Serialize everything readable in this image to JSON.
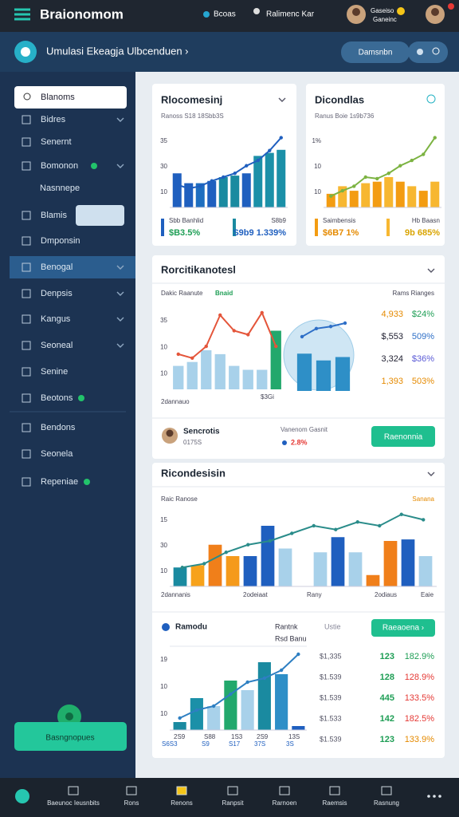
{
  "topbar": {
    "logo": "Braionomom",
    "link": "Bcoas",
    "user": "Ralimenc Kar",
    "profile_line1": "Gaseiso",
    "profile_line2": "Ganeinc"
  },
  "subbar": {
    "title": "Umulasi Ekeagja Ulbcenduen ›",
    "button": "Damsnbn"
  },
  "sidebar": {
    "search": "Blanoms",
    "items": [
      "Bidres",
      "Senernt",
      "Bomonon",
      "Nasnnepe",
      "Blamis",
      "Dmponsin",
      "Benogal",
      "Denpsis",
      "Kangus",
      "Seoneal",
      "Senine",
      "Beotons",
      "Bendons",
      "Seonela",
      "Repeniae"
    ],
    "button": "Basngnopues"
  },
  "card1": {
    "title": "Rlocomesinj",
    "subtitle": "Ranoss S18 18Sbb3S",
    "chart": {
      "ytick_labels": [
        "35",
        "30",
        "10"
      ],
      "ylim": [
        0,
        100
      ],
      "values": [
        45,
        32,
        32,
        35,
        40,
        42,
        45,
        68,
        72,
        76
      ],
      "bar_colors": [
        "#1f5fbf",
        "#1f5fbf",
        "#1e6ec0",
        "#1f5fbf",
        "#1a8aa0",
        "#1a8aa0",
        "#1f5fbf",
        "#1b90a8",
        "#1b90a8",
        "#1b90a8"
      ],
      "line": [
        30,
        25,
        28,
        35,
        40,
        45,
        55,
        62,
        75,
        92
      ],
      "line_color": "#1f5fbf"
    },
    "footer_a_label": "Sbb Banhlid",
    "footer_a_value": "$B3.5%",
    "footer_b_label": "S8b9",
    "footer_b_value": "S9b9 1.339%"
  },
  "card2": {
    "title": "Dicondlas",
    "subtitle": "Ranus Boie 1s9b736",
    "chart": {
      "ytick_labels": [
        "1%",
        "10",
        "10"
      ],
      "ylim": [
        0,
        100
      ],
      "values": [
        18,
        28,
        22,
        32,
        34,
        40,
        34,
        28,
        22,
        34
      ],
      "bar_colors": [
        "#f39c12",
        "#f7b731"
      ],
      "line": [
        15,
        22,
        28,
        40,
        38,
        45,
        55,
        62,
        70,
        92
      ],
      "line_color": "#7cb342"
    },
    "footer_a_label": "Saimbensis",
    "footer_a_value": "$6B7 1%",
    "footer_b_label": "Hb Baasn",
    "footer_b_value": "9b 685%"
  },
  "card3": {
    "title": "Rorcitikanotesl",
    "label_left": "Dakic Raanute",
    "label_badge": "Bnaid",
    "label_right": "Rams Rianges",
    "chart": {
      "ytick_labels": [
        "35",
        "10",
        "10"
      ],
      "ylim": [
        0,
        100
      ],
      "values": [
        30,
        35,
        50,
        45,
        30,
        25,
        25,
        75
      ],
      "bar_colors": [
        "#a8d1ea",
        "#a8d1ea",
        "#a8d1ea",
        "#a8d1ea",
        "#a8d1ea",
        "#a8d1ea",
        "#a8d1ea",
        "#22a86c"
      ],
      "line": [
        45,
        40,
        55,
        95,
        75,
        70,
        98,
        55
      ],
      "line_color": "#e4553a"
    },
    "inset": {
      "ylim": [
        0,
        100
      ],
      "values": [
        55,
        45,
        50
      ],
      "bar_colors": [
        "#2e8fc7"
      ],
      "line": [
        80,
        92,
        95,
        100
      ],
      "line_color": "#2e6fc7"
    },
    "x_label_left": "2dannauo",
    "x_label_right": "$3Gi",
    "list": [
      [
        "4,933",
        "$24%"
      ],
      [
        "$,553",
        "509%"
      ],
      [
        "3,324",
        "$36%"
      ],
      [
        "1,393",
        "503%"
      ]
    ],
    "person": "Sencrotis",
    "person_sub": "0175S",
    "stat_label": "Vanenom Gasnit",
    "stat_value": "2.8%",
    "button": "Raenonnia"
  },
  "card4": {
    "title": "Ricondesisin",
    "label_left": "Raic Ranose",
    "label_right": "Sanana",
    "chart": {
      "ytick_labels": [
        "15",
        "30",
        "10"
      ],
      "ylim": [
        0,
        100
      ],
      "values": [
        25,
        28,
        55,
        40,
        40,
        80,
        50,
        0,
        45,
        65,
        45,
        15,
        60,
        62,
        40
      ],
      "bar_colors": [
        "#1a8aa0",
        "#f7a21b",
        "#f07f1a",
        "#f59a1b",
        "#1f5fbf",
        "#1f5fbf",
        "#a8d1ea",
        "#a8d1ea",
        "#a8d1ea",
        "#1f5fbf",
        "#a8d1ea",
        "#f07f1a",
        "#f07f1a",
        "#1f5fbf",
        "#a8d1ea"
      ],
      "line": [
        25,
        30,
        45,
        55,
        60,
        70,
        80,
        75,
        85,
        80,
        95,
        88
      ],
      "line_color": "#2a8c8a"
    },
    "x_labels": [
      "2dannanis",
      "2odeiaat",
      "Rany",
      "2odiaus",
      "Eaie"
    ]
  },
  "card5": {
    "title": "Ramodu",
    "col1": "Rantnk",
    "col1_sub": "Rsd Banu",
    "col2": "Ustie",
    "button": "Raeaoena ›",
    "chart": {
      "ytick_labels": [
        "19",
        "10",
        "10"
      ],
      "ylim": [
        0,
        100
      ],
      "values": [
        10,
        40,
        30,
        62,
        50,
        85,
        70,
        5
      ],
      "bar_colors": [
        "#1a8aa0",
        "#1b90a8",
        "#a8d1ea",
        "#22a86c",
        "#a8d1ea",
        "#1a8aa0",
        "#2e8fc7",
        "#1f5fbf"
      ],
      "line": [
        15,
        25,
        30,
        45,
        60,
        65,
        75,
        95
      ],
      "line_color": "#2e7fc2"
    },
    "x_labels_top": [
      "2S9",
      "S88",
      "1S3",
      "2S9",
      "13S"
    ],
    "x_labels_bottom": [
      "S6S3",
      "S9",
      "S17",
      "37S",
      "3S"
    ],
    "rows": [
      [
        "$1,335",
        "123",
        "182.9%"
      ],
      [
        "$1.539",
        "128",
        "128.9%"
      ],
      [
        "$1.539",
        "445",
        "133.5%"
      ],
      [
        "$1.533",
        "142",
        "182.5%"
      ],
      [
        "$1.539",
        "123",
        "133.9%"
      ]
    ]
  },
  "bottom_nav": [
    "Baeunoc Ieusnbits",
    "Rons",
    "Renons",
    "Ranpsit",
    "Rarnoen",
    "Raemsis",
    "Rasnung"
  ]
}
